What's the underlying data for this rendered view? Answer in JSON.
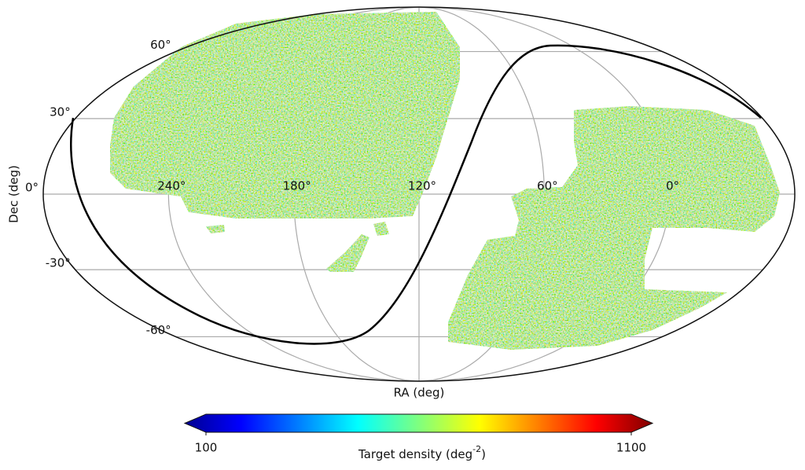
{
  "chart_data": {
    "type": "skymap",
    "xlabel": "RA (deg)",
    "ylabel": "Dec (deg)",
    "xlim": [
      300,
      -60
    ],
    "xticks": [
      {
        "value": 240,
        "label": "240°"
      },
      {
        "value": 180,
        "label": "180°"
      },
      {
        "value": 120,
        "label": "120°"
      },
      {
        "value": 60,
        "label": "60°"
      },
      {
        "value": 0,
        "label": "0°"
      }
    ],
    "ylim": [
      -90,
      90
    ],
    "yticks": [
      {
        "value": 60,
        "label": "60°"
      },
      {
        "value": 30,
        "label": "30°"
      },
      {
        "value": 0,
        "label": "0°"
      },
      {
        "value": -30,
        "label": "-30°"
      },
      {
        "value": -60,
        "label": "-60°"
      }
    ],
    "grid": true,
    "colorbar": {
      "label": [
        "Target density (deg",
        "-2",
        ")"
      ],
      "lim": [
        100,
        1100
      ],
      "ticks": [
        100,
        1100
      ],
      "colormap": "jet"
    }
  }
}
